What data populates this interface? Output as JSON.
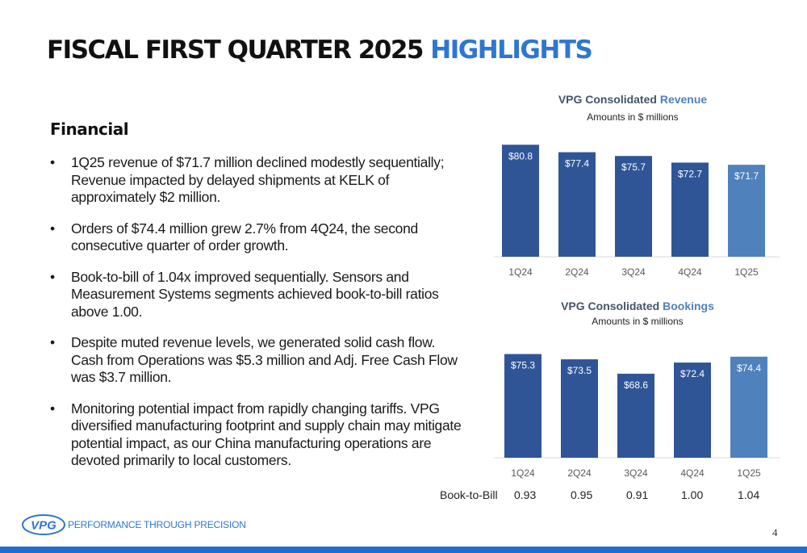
{
  "title": {
    "main": "FISCAL FIRST QUARTER 2025",
    "highlight": "HIGHLIGHTS"
  },
  "section_heading": "Financial",
  "bullets": [
    "1Q25 revenue of $71.7 million declined modestly sequentially; Revenue impacted by delayed shipments at KELK of approximately $2 million.",
    "Orders of $74.4 million grew 2.7% from 4Q24, the second consecutive quarter of order growth.",
    "Book-to-bill of 1.04x improved sequentially.  Sensors and Measurement Systems segments achieved book-to-bill ratios above 1.00.",
    "Despite muted revenue levels, we generated solid cash flow.  Cash from Operations was $5.3 million and Adj. Free Cash Flow was $3.7 million.",
    "Monitoring potential impact from rapidly changing tariffs. VPG diversified manufacturing footprint and supply chain may mitigate potential impact, as our China manufacturing operations are devoted primarily to local customers."
  ],
  "bullet_glyph": "•",
  "colors": {
    "bar_dark": "#2f5597",
    "bar_light": "#4f81bd",
    "accent": "#2e77d0"
  },
  "chart_data": [
    {
      "type": "bar",
      "title": "VPG Consolidated",
      "title_accent": "Revenue",
      "subtitle": "Amounts in $ millions",
      "categories": [
        "1Q24",
        "2Q24",
        "3Q24",
        "4Q24",
        "1Q25"
      ],
      "values": [
        80.8,
        77.4,
        75.7,
        72.7,
        71.7
      ],
      "labels": [
        "$80.8",
        "$77.4",
        "$75.7",
        "$72.7",
        "$71.7"
      ],
      "ylim": [
        30,
        82
      ]
    },
    {
      "type": "bar",
      "title": "VPG Consolidated",
      "title_accent": "Bookings",
      "subtitle": "Amounts in $ millions",
      "categories": [
        "1Q24",
        "2Q24",
        "3Q24",
        "4Q24",
        "1Q25"
      ],
      "values": [
        75.3,
        73.5,
        68.6,
        72.4,
        74.4
      ],
      "labels": [
        "$75.3",
        "$73.5",
        "$68.6",
        "$72.4",
        "$74.4"
      ],
      "ylim": [
        40,
        76
      ]
    }
  ],
  "book_to_bill": {
    "label": "Book-to-Bill",
    "values": [
      "0.93",
      "0.95",
      "0.91",
      "1.00",
      "1.04"
    ]
  },
  "footer": {
    "logo_text": "VPG",
    "tagline": "PERFORMANCE THROUGH PRECISION",
    "page_number": "4"
  }
}
